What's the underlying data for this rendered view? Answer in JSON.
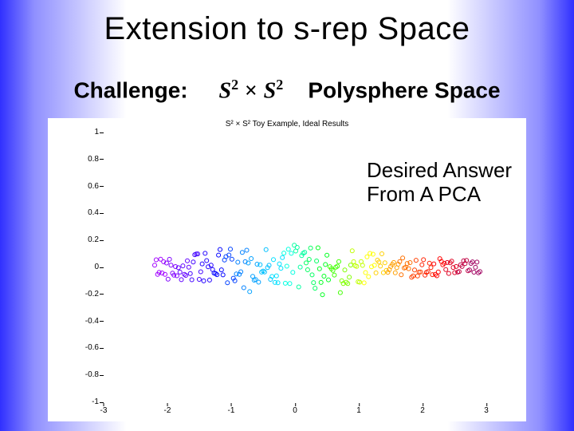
{
  "title": "Extension to s-rep Space",
  "subline": {
    "left": "Challenge:",
    "math_S": "S",
    "math_sup": "2",
    "math_times": "×",
    "right": "Polysphere Space"
  },
  "annotation": {
    "line1": "Desired Answer",
    "line2": "From A PCA"
  },
  "chart": {
    "title": "S² × S² Toy Example, Ideal Results",
    "title_fontsize": 10,
    "background_color": "#ffffff",
    "xlim": [
      -3,
      3
    ],
    "ylim": [
      -1,
      1
    ],
    "xticks": [
      -3,
      -2,
      -1,
      0,
      1,
      2,
      3
    ],
    "yticks": [
      -1,
      -0.8,
      -0.6,
      -0.4,
      -0.2,
      0,
      0.2,
      0.4,
      0.6,
      0.8,
      1
    ],
    "ytick_labels": [
      "-1",
      "-0.8",
      "-0.6",
      "-0.4",
      "-0.2",
      "0",
      "0.2",
      "0.4",
      "0.6",
      "0.8",
      "1"
    ],
    "xtick_labels": [
      "-3",
      "-2",
      "-1",
      "0",
      "1",
      "2",
      "3"
    ],
    "tick_fontsize": 10,
    "tick_color": "#000000",
    "marker_style": "circle-open",
    "marker_size": 5,
    "marker_stroke": 1,
    "n_points": 220,
    "x_data_range": [
      -2.2,
      2.9
    ],
    "y_noise_sd": 0.04,
    "colormap": [
      "#a000ff",
      "#8000ff",
      "#6000ff",
      "#4000ff",
      "#2000ff",
      "#0000ff",
      "#0040ff",
      "#0080ff",
      "#00a0ff",
      "#00c0ff",
      "#00e0ff",
      "#00ffe0",
      "#00ffa0",
      "#00ff60",
      "#00ff20",
      "#40ff00",
      "#80ff00",
      "#c0ff00",
      "#ffff00",
      "#ffd000",
      "#ffa000",
      "#ff7000",
      "#ff4000",
      "#ff2000",
      "#ff0000",
      "#e00020",
      "#c00040",
      "#a00060"
    ]
  }
}
